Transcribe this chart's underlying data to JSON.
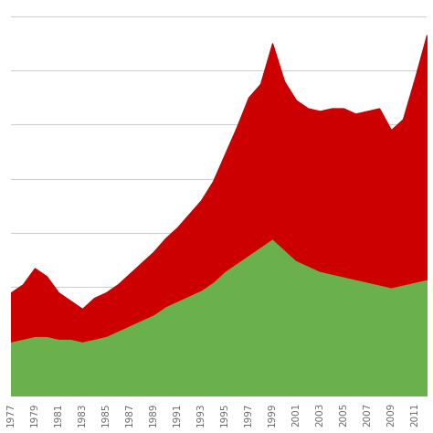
{
  "years": [
    1977,
    1978,
    1979,
    1980,
    1981,
    1982,
    1983,
    1984,
    1985,
    1986,
    1987,
    1988,
    1989,
    1990,
    1991,
    1992,
    1993,
    1994,
    1995,
    1996,
    1997,
    1998,
    1999,
    2000,
    2001,
    2002,
    2003,
    2004,
    2005,
    2006,
    2007,
    2008,
    2009,
    2010,
    2011,
    2012
  ],
  "green": [
    2.0,
    2.1,
    2.2,
    2.2,
    2.1,
    2.1,
    2.0,
    2.1,
    2.2,
    2.4,
    2.6,
    2.8,
    3.0,
    3.3,
    3.5,
    3.7,
    3.9,
    4.2,
    4.6,
    4.9,
    5.2,
    5.5,
    5.8,
    5.4,
    5.0,
    4.8,
    4.6,
    4.5,
    4.4,
    4.3,
    4.2,
    4.1,
    4.0,
    4.1,
    4.2,
    4.3
  ],
  "red_above_green": [
    1.8,
    2.0,
    2.5,
    2.2,
    1.7,
    1.4,
    1.2,
    1.5,
    1.6,
    1.7,
    1.9,
    2.1,
    2.3,
    2.5,
    2.7,
    3.0,
    3.3,
    3.7,
    4.3,
    5.0,
    5.8,
    6.0,
    7.2,
    6.2,
    5.9,
    5.8,
    5.9,
    6.1,
    6.2,
    6.1,
    6.3,
    6.5,
    5.8,
    6.1,
    7.5,
    9.0
  ],
  "green_color": "#6ab04c",
  "red_color": "#cc0000",
  "bg_color": "#ffffff",
  "grid_color": "#d0d0d0",
  "xtick_labels": [
    "1977",
    "1979",
    "1981",
    "1983",
    "1985",
    "1987",
    "1989",
    "1991",
    "1993",
    "1995",
    "1997",
    "1999",
    "2001",
    "2003",
    "2005",
    "2007",
    "2009",
    "2011"
  ],
  "xtick_years": [
    1977,
    1979,
    1981,
    1983,
    1985,
    1987,
    1989,
    1991,
    1993,
    1995,
    1997,
    1999,
    2001,
    2003,
    2005,
    2007,
    2009,
    2011
  ]
}
